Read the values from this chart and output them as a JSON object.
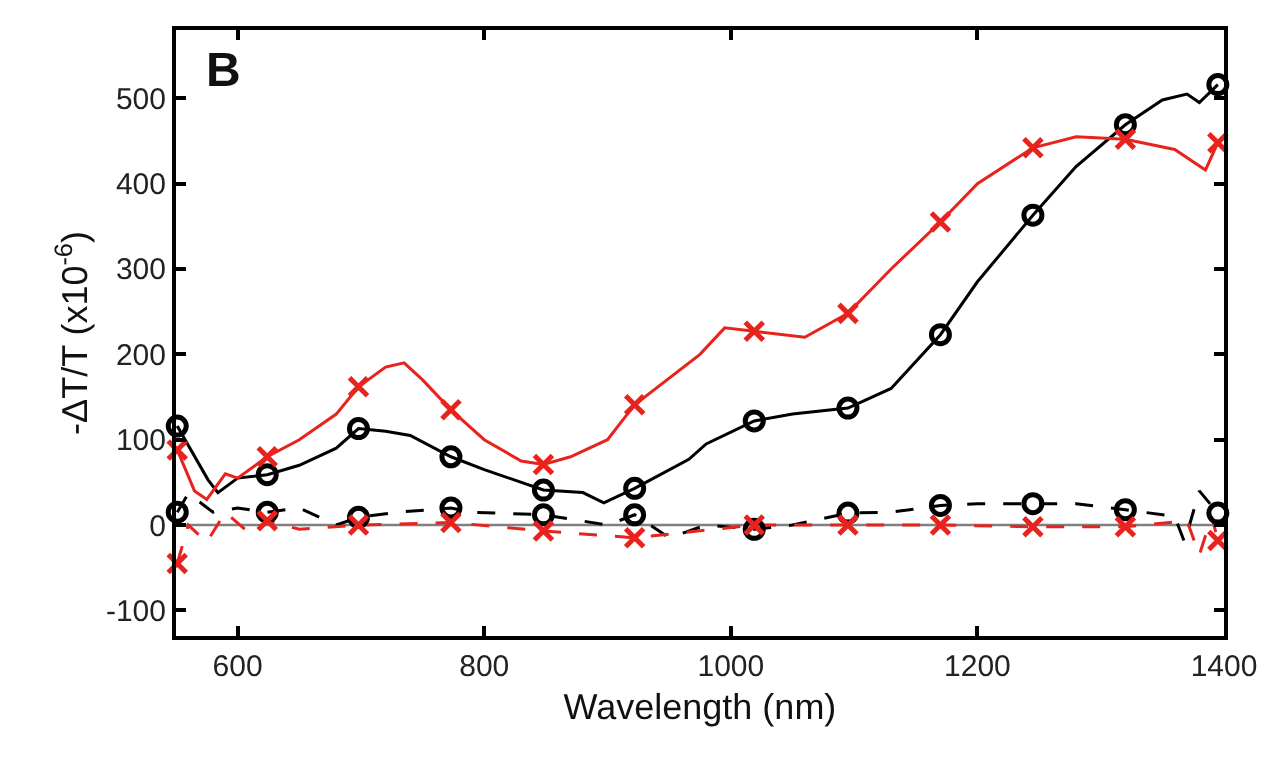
{
  "chart_data": {
    "type": "line",
    "xlabel": "Wavelength (nm)",
    "ylabel": "-ΔT/T (x10$^{-6}$)",
    "annotations": [
      "B"
    ],
    "xlim": [
      550,
      1400
    ],
    "xticks": [
      600,
      800,
      1000,
      1200,
      1400
    ],
    "ylim": [
      -130,
      580
    ],
    "yticks": [
      -100,
      0,
      100,
      200,
      300,
      400,
      500
    ],
    "grid": false,
    "ref_lines": [
      {
        "axis": "y",
        "value": 0,
        "color": "#808080",
        "line_style": "solid"
      }
    ],
    "series": [
      {
        "color": "#000000",
        "marker": "none",
        "line_style": "dashed",
        "x": [
          551,
          560,
          580,
          600,
          624,
          650,
          680,
          698,
          730,
          773,
          790,
          848,
          900,
          922,
          950,
          980,
          1019,
          1050,
          1095,
          1130,
          1170,
          1200,
          1245,
          1280,
          1320,
          1360,
          1368,
          1380,
          1395
        ],
        "values": [
          15,
          37,
          15,
          20,
          15,
          20,
          0,
          9,
          15,
          20,
          15,
          12,
          0,
          12,
          -15,
          0,
          -5,
          0,
          14,
          15,
          23,
          25,
          25,
          25,
          18,
          10,
          -20,
          40,
          14
        ]
      },
      {
        "color": "#e8231e",
        "marker": "none",
        "line_style": "dashed",
        "x": [
          551,
          560,
          575,
          590,
          610,
          624,
          650,
          698,
          773,
          848,
          922,
          1019,
          1095,
          1170,
          1245,
          1320,
          1370,
          1380,
          1390,
          1395
        ],
        "values": [
          -45,
          0,
          -20,
          15,
          -10,
          5,
          -5,
          0,
          3,
          -7,
          -15,
          0,
          0,
          0,
          -2,
          -2,
          5,
          -35,
          10,
          -18
        ]
      },
      {
        "color": "#000000",
        "marker": "none",
        "line_style": "solid",
        "x": [
          551,
          576,
          584,
          600,
          624,
          650,
          680,
          698,
          720,
          740,
          773,
          800,
          848,
          880,
          897,
          922,
          966,
          980,
          1019,
          1050,
          1095,
          1130,
          1170,
          1200,
          1245,
          1280,
          1320,
          1350,
          1370,
          1380,
          1395
        ],
        "values": [
          116,
          53,
          38,
          55,
          59,
          70,
          90,
          113,
          110,
          105,
          80,
          65,
          41,
          38,
          26,
          43,
          77,
          95,
          122,
          130,
          137,
          160,
          223,
          285,
          363,
          420,
          469,
          498,
          505,
          495,
          516
        ]
      },
      {
        "color": "#e8231e",
        "marker": "none",
        "line_style": "solid",
        "x": [
          551,
          565,
          575,
          590,
          600,
          624,
          650,
          680,
          698,
          720,
          735,
          750,
          773,
          800,
          830,
          848,
          870,
          900,
          922,
          975,
          995,
          1019,
          1060,
          1095,
          1130,
          1170,
          1200,
          1245,
          1280,
          1320,
          1360,
          1385,
          1395
        ],
        "values": [
          88,
          40,
          30,
          60,
          55,
          80,
          100,
          130,
          162,
          185,
          190,
          170,
          135,
          100,
          75,
          71,
          80,
          100,
          141,
          200,
          231,
          227,
          220,
          248,
          300,
          355,
          400,
          442,
          455,
          452,
          440,
          416,
          448
        ]
      },
      {
        "type": "scatter",
        "color": "#000000",
        "marker": "circle",
        "x": [
          551,
          624,
          698,
          773,
          848,
          922,
          1019,
          1095,
          1170,
          1245,
          1320,
          1395
        ],
        "values": [
          15,
          15,
          9,
          20,
          12,
          12,
          -5,
          14,
          23,
          25,
          18,
          14
        ]
      },
      {
        "type": "scatter",
        "color": "#e8231e",
        "marker": "cross",
        "x": [
          551,
          624,
          698,
          773,
          848,
          922,
          1019,
          1095,
          1170,
          1245,
          1320,
          1395
        ],
        "values": [
          -45,
          5,
          0,
          3,
          -7,
          -15,
          0,
          0,
          0,
          -2,
          -2,
          -18
        ]
      },
      {
        "type": "scatter",
        "color": "#000000",
        "marker": "circle",
        "x": [
          551,
          624,
          698,
          773,
          848,
          922,
          1019,
          1095,
          1170,
          1245,
          1320,
          1395
        ],
        "values": [
          116,
          59,
          113,
          80,
          41,
          43,
          122,
          137,
          223,
          363,
          469,
          516
        ]
      },
      {
        "type": "scatter",
        "color": "#e8231e",
        "marker": "cross",
        "x": [
          551,
          624,
          698,
          773,
          848,
          922,
          1019,
          1095,
          1170,
          1245,
          1320,
          1395
        ],
        "values": [
          88,
          80,
          162,
          135,
          71,
          141,
          227,
          248,
          355,
          442,
          452,
          448
        ]
      }
    ]
  }
}
